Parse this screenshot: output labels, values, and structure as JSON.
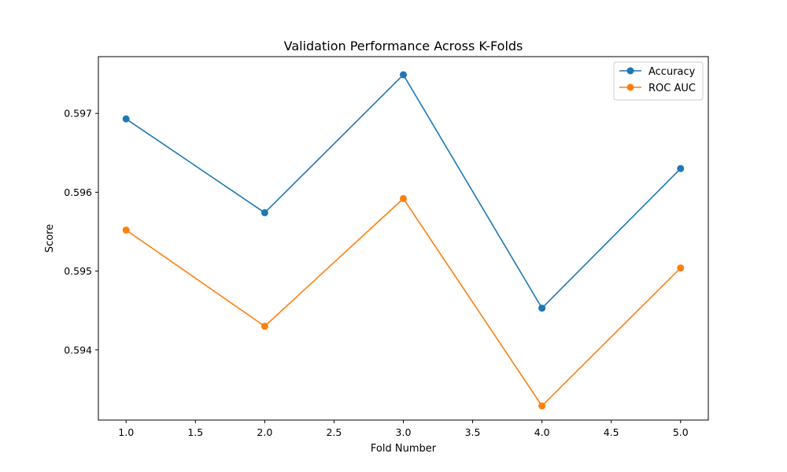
{
  "chart_data": {
    "type": "line",
    "title": "Validation Performance Across K-Folds",
    "xlabel": "Fold Number",
    "ylabel": "Score",
    "x": [
      1,
      2,
      3,
      4,
      5
    ],
    "xlim": [
      0.8,
      5.2
    ],
    "ylim": [
      0.59311,
      0.59772
    ],
    "x_ticks": [
      1.0,
      1.5,
      2.0,
      2.5,
      3.0,
      3.5,
      4.0,
      4.5,
      5.0
    ],
    "x_tick_labels": [
      "1.0",
      "1.5",
      "2.0",
      "2.5",
      "3.0",
      "3.5",
      "4.0",
      "4.5",
      "5.0"
    ],
    "y_ticks": [
      0.594,
      0.595,
      0.596,
      0.597
    ],
    "y_tick_labels": [
      "0.594",
      "0.595",
      "0.596",
      "0.597"
    ],
    "grid": false,
    "legend_position": "top-right",
    "series": [
      {
        "name": "Accuracy",
        "color": "#1f77b4",
        "marker": "circle",
        "values": [
          0.59693,
          0.59574,
          0.59749,
          0.59453,
          0.5963
        ]
      },
      {
        "name": "ROC AUC",
        "color": "#ff7f0e",
        "marker": "circle",
        "values": [
          0.59552,
          0.5943,
          0.59592,
          0.59329,
          0.59504
        ]
      }
    ]
  }
}
